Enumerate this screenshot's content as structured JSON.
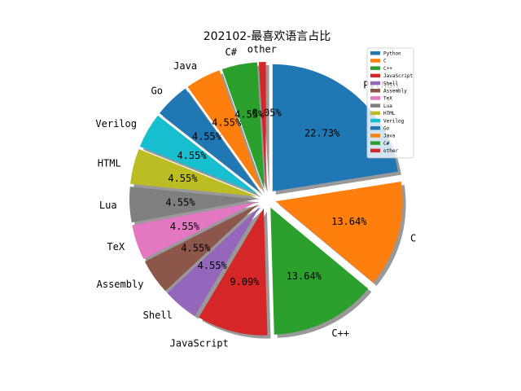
{
  "chart_data": {
    "type": "pie",
    "title": "202102-最喜欢语言占比",
    "slices": [
      {
        "label": "Python",
        "value": 22.73,
        "pct_label": "22.73%",
        "color": "#1f77b4"
      },
      {
        "label": "C",
        "value": 13.64,
        "pct_label": "13.64%",
        "color": "#ff7f0e"
      },
      {
        "label": "C++",
        "value": 13.64,
        "pct_label": "13.64%",
        "color": "#2ca02c"
      },
      {
        "label": "JavaScript",
        "value": 9.09,
        "pct_label": "9.09%",
        "color": "#d62728"
      },
      {
        "label": "Shell",
        "value": 4.55,
        "pct_label": "4.55%",
        "color": "#9467bd"
      },
      {
        "label": "Assembly",
        "value": 4.55,
        "pct_label": "4.55%",
        "color": "#8c564b"
      },
      {
        "label": "TeX",
        "value": 4.55,
        "pct_label": "4.55%",
        "color": "#e377c2"
      },
      {
        "label": "Lua",
        "value": 4.55,
        "pct_label": "4.55%",
        "color": "#7f7f7f"
      },
      {
        "label": "HTML",
        "value": 4.55,
        "pct_label": "4.55%",
        "color": "#bcbd22"
      },
      {
        "label": "Verilog",
        "value": 4.55,
        "pct_label": "4.55%",
        "color": "#17becf"
      },
      {
        "label": "Go",
        "value": 4.55,
        "pct_label": "4.55%",
        "color": "#1f77b4"
      },
      {
        "label": "Java",
        "value": 4.55,
        "pct_label": "4.55%",
        "color": "#ff7f0e"
      },
      {
        "label": "C#",
        "value": 4.55,
        "pct_label": "4.55%",
        "color": "#2ca02c"
      },
      {
        "label": "other",
        "value": -0.05,
        "pct_label": "-0.05%",
        "color": "#d62728"
      }
    ],
    "legend": {
      "placement": "top-right",
      "entries": [
        "Python",
        "C",
        "C++",
        "JavaScript",
        "Shell",
        "Assembly",
        "TeX",
        "Lua",
        "HTML",
        "Verilog",
        "Go",
        "Java",
        "C#",
        "other"
      ]
    },
    "shadow": true,
    "exploded": true,
    "direction": "clockwise",
    "start_angle_deg": 90
  }
}
